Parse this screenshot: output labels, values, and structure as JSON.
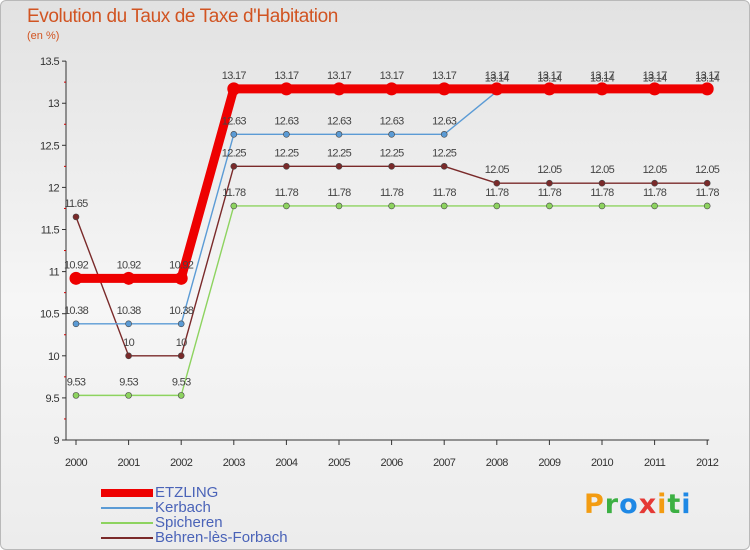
{
  "chart_data": {
    "type": "line",
    "title": "Evolution du Taux de Taxe d'Habitation",
    "subtitle": "(en %)",
    "categories": [
      "2000",
      "2001",
      "2002",
      "2003",
      "2004",
      "2005",
      "2006",
      "2007",
      "2008",
      "2009",
      "2010",
      "2011",
      "2012"
    ],
    "ylim": [
      9,
      13.5
    ],
    "yticks": [
      "9",
      "9.5",
      "10",
      "10.5",
      "11",
      "11.5",
      "12",
      "12.5",
      "13",
      "13.5"
    ],
    "grid": false,
    "legend_position": "bottom-left",
    "series": [
      {
        "name": "ETZLING",
        "color": "#ee0000",
        "values": [
          10.92,
          10.92,
          10.92,
          13.17,
          13.17,
          13.17,
          13.17,
          13.17,
          13.17,
          13.17,
          13.17,
          13.17,
          13.17
        ],
        "labels": [
          "10.92",
          "10.92",
          "10.92",
          "13.17",
          "13.17",
          "13.17",
          "13.17",
          "13.17",
          "13.17",
          "13.17",
          "13.17",
          "13.17",
          "13.17"
        ]
      },
      {
        "name": "Kerbach",
        "color": "#5b9bd5",
        "values": [
          10.38,
          10.38,
          10.38,
          12.63,
          12.63,
          12.63,
          12.63,
          12.63,
          13.14,
          13.14,
          13.14,
          13.14,
          13.14
        ],
        "labels": [
          "10.38",
          "10.38",
          "10.38",
          "12.63",
          "12.63",
          "12.63",
          "12.63",
          "12.63",
          "13.14",
          "13.14",
          "13.14",
          "13.14",
          "13.14"
        ]
      },
      {
        "name": "Spicheren",
        "color": "#8dd35f",
        "values": [
          9.53,
          9.53,
          9.53,
          11.78,
          11.78,
          11.78,
          11.78,
          11.78,
          11.78,
          11.78,
          11.78,
          11.78,
          11.78
        ],
        "labels": [
          "9.53",
          "9.53",
          "9.53",
          "11.78",
          "11.78",
          "11.78",
          "11.78",
          "11.78",
          "11.78",
          "11.78",
          "11.78",
          "11.78",
          "11.78"
        ]
      },
      {
        "name": "Behren-lès-Forbach",
        "color": "#7a2a2a",
        "values": [
          11.65,
          10,
          10,
          12.25,
          12.25,
          12.25,
          12.25,
          12.25,
          12.05,
          12.05,
          12.05,
          12.05,
          12.05
        ],
        "labels": [
          "11.65",
          "10",
          "10",
          "12.25",
          "12.25",
          "12.25",
          "12.25",
          "12.25",
          "12.05",
          "12.05",
          "12.05",
          "12.05",
          "12.05"
        ]
      }
    ]
  },
  "logo": {
    "letters": [
      "P",
      "r",
      "o",
      "x",
      "i",
      "t",
      "i"
    ],
    "colors": [
      "#f39c12",
      "#3cb043",
      "#1e88e5",
      "#e53935",
      "#f39c12",
      "#3cb043",
      "#1e88e5"
    ]
  }
}
